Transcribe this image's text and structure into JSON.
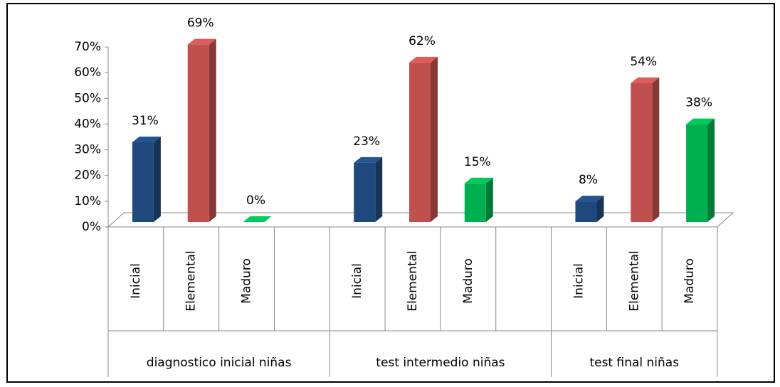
{
  "chart_data": {
    "type": "bar",
    "categories": [
      "diagnostico inicial niñas",
      "test intermedio niñas",
      "test final niñas"
    ],
    "series": [
      {
        "name": "Inicial",
        "color": "#1f497d",
        "values": [
          31,
          23,
          8
        ],
        "value_labels": [
          "31%",
          "23%",
          "8%"
        ]
      },
      {
        "name": "Elemental",
        "color": "#c0504d",
        "values": [
          69,
          62,
          54
        ],
        "value_labels": [
          "69%",
          "62%",
          "54%"
        ]
      },
      {
        "name": "Maduro",
        "color": "#00b050",
        "values": [
          0,
          15,
          38
        ],
        "value_labels": [
          "0%",
          "15%",
          "38%"
        ]
      }
    ],
    "ylim": [
      0,
      70
    ],
    "yticks": [
      {
        "value": 0,
        "label": "0%"
      },
      {
        "value": 10,
        "label": "10%"
      },
      {
        "value": 20,
        "label": "20%"
      },
      {
        "value": 30,
        "label": "30%"
      },
      {
        "value": 40,
        "label": "40%"
      },
      {
        "value": 50,
        "label": "50%"
      },
      {
        "value": 60,
        "label": "60%"
      },
      {
        "value": 70,
        "label": "70%"
      }
    ]
  }
}
